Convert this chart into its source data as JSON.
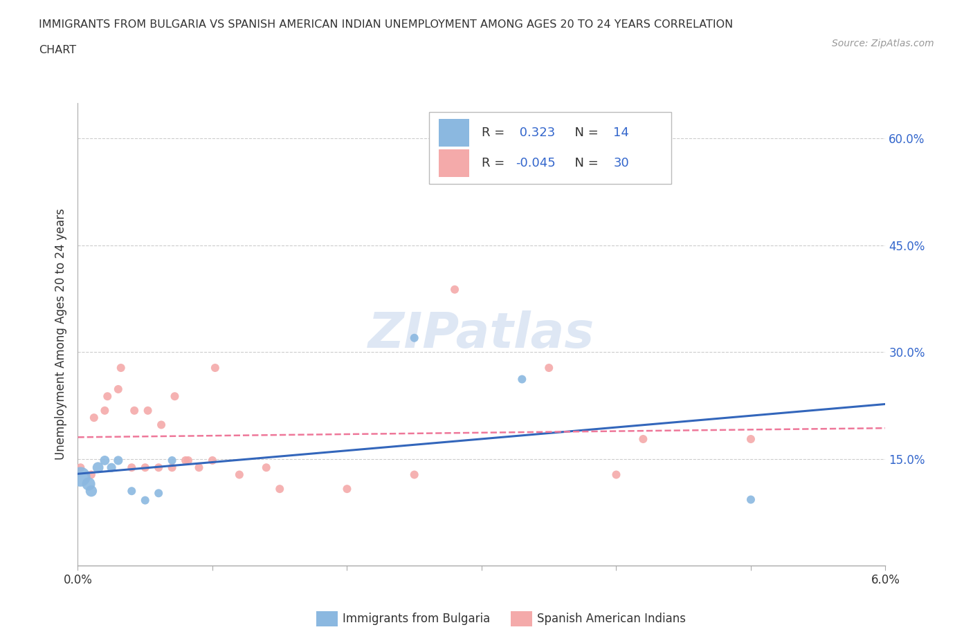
{
  "title_line1": "IMMIGRANTS FROM BULGARIA VS SPANISH AMERICAN INDIAN UNEMPLOYMENT AMONG AGES 20 TO 24 YEARS CORRELATION",
  "title_line2": "CHART",
  "source_text": "Source: ZipAtlas.com",
  "ylabel": "Unemployment Among Ages 20 to 24 years",
  "xlim": [
    0.0,
    0.06
  ],
  "ylim": [
    0.0,
    0.65
  ],
  "xticks": [
    0.0,
    0.01,
    0.02,
    0.03,
    0.04,
    0.05,
    0.06
  ],
  "xtick_labels": [
    "0.0%",
    "",
    "",
    "",
    "",
    "",
    "6.0%"
  ],
  "yticks": [
    0.0,
    0.15,
    0.3,
    0.45,
    0.6
  ],
  "ytick_labels": [
    "",
    "15.0%",
    "30.0%",
    "45.0%",
    "60.0%"
  ],
  "grid_yticks": [
    0.15,
    0.3,
    0.45,
    0.6
  ],
  "bulgaria_R": 0.323,
  "bulgaria_N": 14,
  "spanish_R": -0.045,
  "spanish_N": 30,
  "bulgaria_color": "#8BB8E0",
  "spanish_color": "#F4AAAA",
  "bulgaria_trend_color": "#3366BB",
  "spanish_trend_color": "#EE7799",
  "rn_color": "#3366CC",
  "text_color": "#333333",
  "grid_color": "#CCCCCC",
  "axis_color": "#AAAAAA",
  "background_color": "#FFFFFF",
  "watermark_color": "#C8D8EE",
  "bulgaria_points_x": [
    0.0002,
    0.0008,
    0.001,
    0.0015,
    0.002,
    0.0025,
    0.003,
    0.004,
    0.005,
    0.006,
    0.007,
    0.025,
    0.033,
    0.05
  ],
  "bulgaria_points_y": [
    0.125,
    0.115,
    0.105,
    0.138,
    0.148,
    0.138,
    0.148,
    0.105,
    0.092,
    0.102,
    0.148,
    0.32,
    0.262,
    0.093
  ],
  "bulgaria_sizes": [
    420,
    190,
    140,
    130,
    100,
    90,
    90,
    75,
    75,
    75,
    75,
    75,
    75,
    75
  ],
  "spanish_points_x": [
    0.0002,
    0.001,
    0.0012,
    0.002,
    0.0022,
    0.003,
    0.0032,
    0.004,
    0.0042,
    0.005,
    0.0052,
    0.006,
    0.0062,
    0.007,
    0.0072,
    0.008,
    0.0082,
    0.009,
    0.01,
    0.0102,
    0.012,
    0.014,
    0.015,
    0.02,
    0.025,
    0.028,
    0.035,
    0.04,
    0.042,
    0.05
  ],
  "spanish_points_y": [
    0.138,
    0.128,
    0.208,
    0.218,
    0.238,
    0.248,
    0.278,
    0.138,
    0.218,
    0.138,
    0.218,
    0.138,
    0.198,
    0.138,
    0.238,
    0.148,
    0.148,
    0.138,
    0.148,
    0.278,
    0.128,
    0.138,
    0.108,
    0.108,
    0.128,
    0.388,
    0.278,
    0.128,
    0.178,
    0.178
  ],
  "spanish_sizes": [
    75,
    75,
    75,
    75,
    75,
    75,
    75,
    75,
    75,
    75,
    75,
    75,
    75,
    75,
    75,
    75,
    75,
    75,
    75,
    75,
    75,
    75,
    75,
    75,
    75,
    75,
    75,
    75,
    75,
    75
  ],
  "bottom_legend_labels": [
    "Immigrants from Bulgaria",
    "Spanish American Indians"
  ]
}
